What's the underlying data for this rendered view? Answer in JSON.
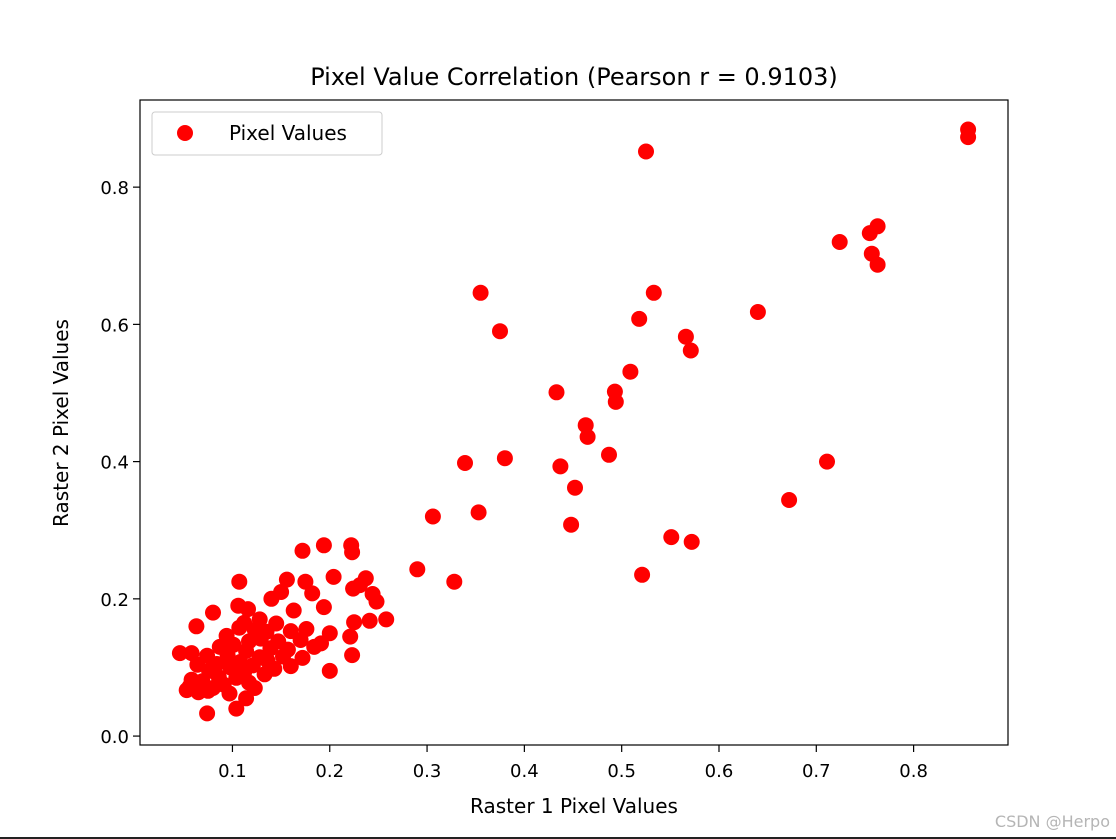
{
  "chart_data": {
    "type": "scatter",
    "title": "Pixel Value Correlation (Pearson r = 0.9103)",
    "xlabel": "Raster 1 Pixel Values",
    "ylabel": "Raster 2 Pixel Values",
    "xlim": [
      0.005,
      0.897
    ],
    "ylim": [
      -0.013,
      0.927
    ],
    "xticks": [
      0.1,
      0.2,
      0.3,
      0.4,
      0.5,
      0.6,
      0.7,
      0.8
    ],
    "xtick_labels": [
      "0.1",
      "0.2",
      "0.3",
      "0.4",
      "0.5",
      "0.6",
      "0.7",
      "0.8"
    ],
    "yticks": [
      0.0,
      0.2,
      0.4,
      0.6,
      0.8
    ],
    "ytick_labels": [
      "0.0",
      "0.2",
      "0.4",
      "0.6",
      "0.8"
    ],
    "grid": false,
    "legend": {
      "position": "top-left",
      "entries": [
        "Pixel Values"
      ]
    },
    "series": [
      {
        "name": "Pixel Values",
        "color": "#ff0000",
        "points": [
          [
            0.856,
            0.884
          ],
          [
            0.856,
            0.873
          ],
          [
            0.525,
            0.852
          ],
          [
            0.763,
            0.743
          ],
          [
            0.755,
            0.733
          ],
          [
            0.724,
            0.72
          ],
          [
            0.757,
            0.703
          ],
          [
            0.763,
            0.687
          ],
          [
            0.355,
            0.646
          ],
          [
            0.533,
            0.646
          ],
          [
            0.64,
            0.618
          ],
          [
            0.518,
            0.608
          ],
          [
            0.375,
            0.59
          ],
          [
            0.566,
            0.582
          ],
          [
            0.571,
            0.562
          ],
          [
            0.509,
            0.531
          ],
          [
            0.433,
            0.501
          ],
          [
            0.493,
            0.502
          ],
          [
            0.494,
            0.487
          ],
          [
            0.463,
            0.453
          ],
          [
            0.465,
            0.436
          ],
          [
            0.487,
            0.41
          ],
          [
            0.38,
            0.405
          ],
          [
            0.339,
            0.398
          ],
          [
            0.437,
            0.393
          ],
          [
            0.711,
            0.4
          ],
          [
            0.452,
            0.362
          ],
          [
            0.672,
            0.344
          ],
          [
            0.353,
            0.326
          ],
          [
            0.306,
            0.32
          ],
          [
            0.448,
            0.308
          ],
          [
            0.551,
            0.29
          ],
          [
            0.572,
            0.283
          ],
          [
            0.29,
            0.243
          ],
          [
            0.521,
            0.235
          ],
          [
            0.328,
            0.225
          ],
          [
            0.194,
            0.278
          ],
          [
            0.222,
            0.278
          ],
          [
            0.172,
            0.27
          ],
          [
            0.223,
            0.268
          ],
          [
            0.237,
            0.23
          ],
          [
            0.204,
            0.232
          ],
          [
            0.156,
            0.228
          ],
          [
            0.107,
            0.225
          ],
          [
            0.175,
            0.225
          ],
          [
            0.231,
            0.22
          ],
          [
            0.224,
            0.215
          ],
          [
            0.15,
            0.21
          ],
          [
            0.244,
            0.207
          ],
          [
            0.182,
            0.208
          ],
          [
            0.248,
            0.196
          ],
          [
            0.14,
            0.2
          ],
          [
            0.106,
            0.19
          ],
          [
            0.194,
            0.188
          ],
          [
            0.116,
            0.185
          ],
          [
            0.08,
            0.18
          ],
          [
            0.163,
            0.183
          ],
          [
            0.128,
            0.17
          ],
          [
            0.258,
            0.17
          ],
          [
            0.241,
            0.168
          ],
          [
            0.225,
            0.166
          ],
          [
            0.112,
            0.165
          ],
          [
            0.145,
            0.164
          ],
          [
            0.063,
            0.16
          ],
          [
            0.107,
            0.158
          ],
          [
            0.123,
            0.155
          ],
          [
            0.135,
            0.152
          ],
          [
            0.16,
            0.153
          ],
          [
            0.176,
            0.156
          ],
          [
            0.2,
            0.15
          ],
          [
            0.221,
            0.145
          ],
          [
            0.094,
            0.146
          ],
          [
            0.129,
            0.142
          ],
          [
            0.147,
            0.138
          ],
          [
            0.117,
            0.138
          ],
          [
            0.17,
            0.14
          ],
          [
            0.191,
            0.135
          ],
          [
            0.101,
            0.133
          ],
          [
            0.087,
            0.13
          ],
          [
            0.139,
            0.128
          ],
          [
            0.157,
            0.126
          ],
          [
            0.184,
            0.13
          ],
          [
            0.114,
            0.124
          ],
          [
            0.046,
            0.121
          ],
          [
            0.058,
            0.121
          ],
          [
            0.074,
            0.117
          ],
          [
            0.095,
            0.118
          ],
          [
            0.128,
            0.115
          ],
          [
            0.152,
            0.116
          ],
          [
            0.172,
            0.114
          ],
          [
            0.223,
            0.118
          ],
          [
            0.136,
            0.11
          ],
          [
            0.108,
            0.108
          ],
          [
            0.084,
            0.105
          ],
          [
            0.064,
            0.104
          ],
          [
            0.121,
            0.103
          ],
          [
            0.16,
            0.102
          ],
          [
            0.098,
            0.1
          ],
          [
            0.143,
            0.098
          ],
          [
            0.2,
            0.095
          ],
          [
            0.076,
            0.095
          ],
          [
            0.112,
            0.093
          ],
          [
            0.133,
            0.09
          ],
          [
            0.086,
            0.086
          ],
          [
            0.104,
            0.085
          ],
          [
            0.058,
            0.082
          ],
          [
            0.069,
            0.08
          ],
          [
            0.117,
            0.078
          ],
          [
            0.091,
            0.075
          ],
          [
            0.056,
            0.072
          ],
          [
            0.08,
            0.07
          ],
          [
            0.123,
            0.07
          ],
          [
            0.075,
            0.066
          ],
          [
            0.053,
            0.067
          ],
          [
            0.065,
            0.064
          ],
          [
            0.097,
            0.062
          ],
          [
            0.114,
            0.055
          ],
          [
            0.104,
            0.04
          ],
          [
            0.074,
            0.033
          ]
        ]
      }
    ]
  },
  "watermark": "CSDN @Herpo"
}
